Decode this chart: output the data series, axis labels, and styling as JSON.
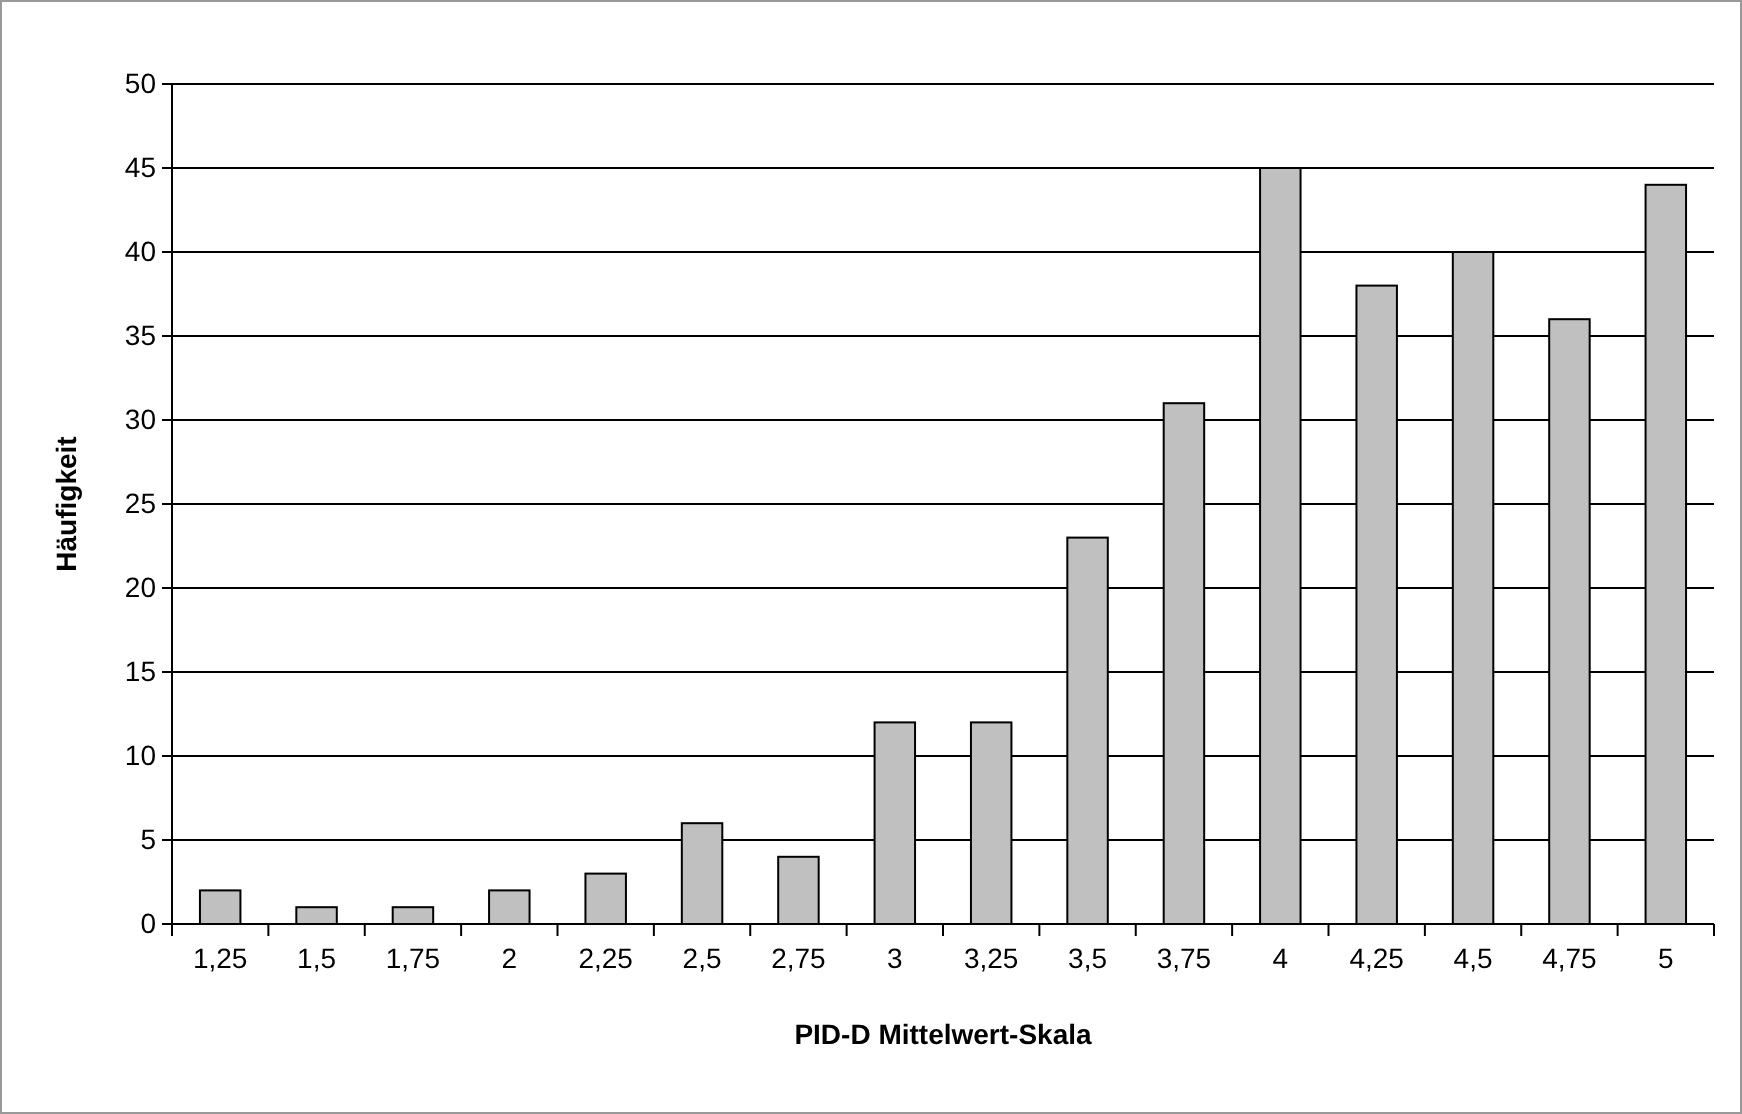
{
  "chart_data": {
    "type": "bar",
    "xlabel": "PID-D Mittelwert-Skala",
    "ylabel": "Häufigkeit",
    "categories": [
      "1,25",
      "1,5",
      "1,75",
      "2",
      "2,25",
      "2,5",
      "2,75",
      "3",
      "3,25",
      "3,5",
      "3,75",
      "4",
      "4,25",
      "4,5",
      "4,75",
      "5"
    ],
    "values": [
      2,
      1,
      1,
      2,
      3,
      6,
      4,
      12,
      12,
      23,
      31,
      45,
      38,
      40,
      36,
      44
    ],
    "color": "#c0c0c0",
    "ylim": [
      0,
      50
    ],
    "yticks": [
      0,
      5,
      10,
      15,
      20,
      25,
      30,
      35,
      40,
      45,
      50
    ],
    "grid": "y"
  }
}
